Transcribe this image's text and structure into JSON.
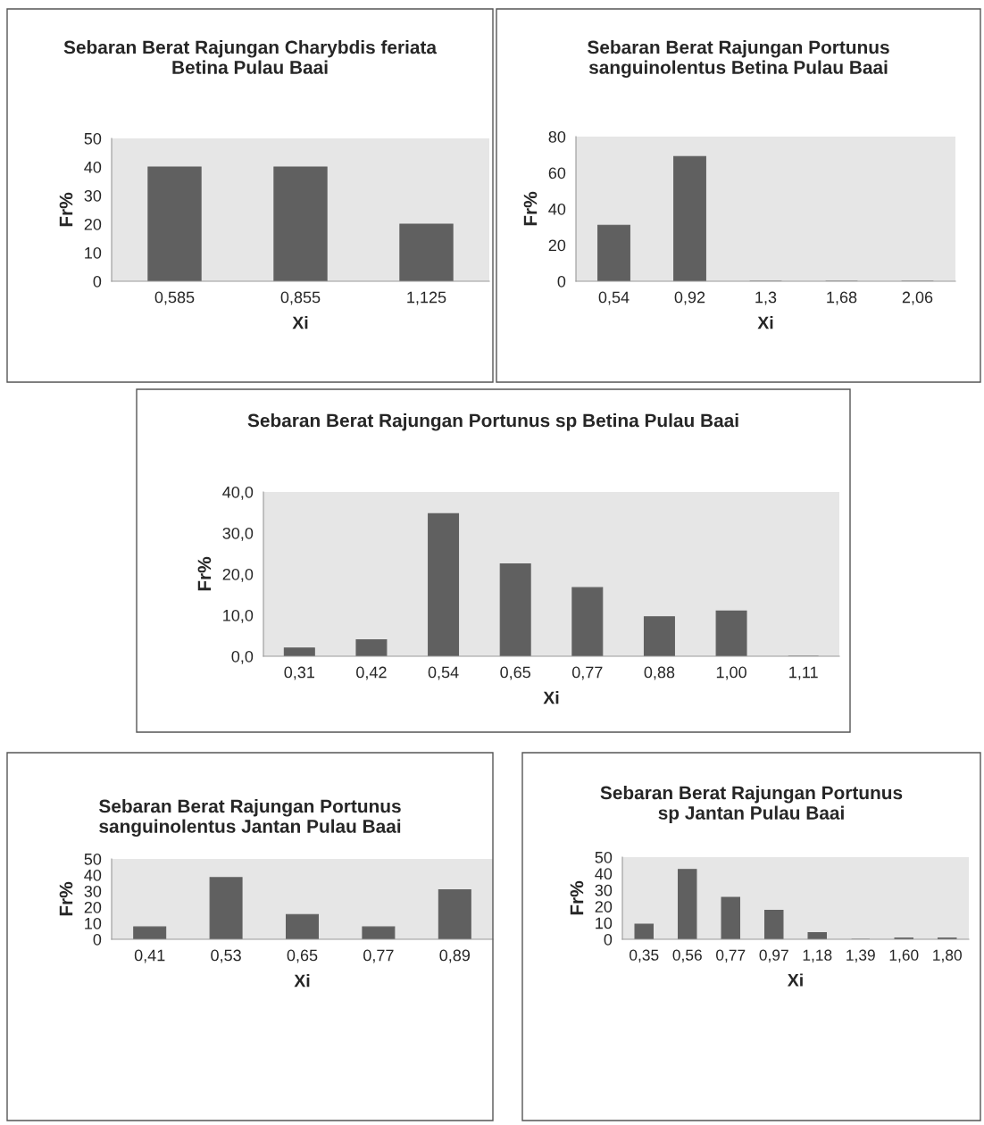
{
  "chart_data": [
    {
      "type": "bar",
      "title": "Sebaran Berat Rajungan Charybdis feriata Betina Pulau Baai",
      "xlabel": "Xi",
      "ylabel": "Fr%",
      "categories": [
        "0,585",
        "0,855",
        "1,125"
      ],
      "values": [
        40,
        40,
        20
      ],
      "color": "#606060",
      "ylim": [
        0,
        50
      ],
      "yticks": [
        0,
        10,
        20,
        30,
        40,
        50
      ]
    },
    {
      "type": "bar",
      "title": "Sebaran Berat Rajungan Portunus sanguinolentus Betina Pulau Baai",
      "xlabel": "Xi",
      "ylabel": "Fr%",
      "categories": [
        "0,54",
        "0,92",
        "1,3",
        "1,68",
        "2,06"
      ],
      "values": [
        31,
        69,
        0,
        0,
        0
      ],
      "color": "#606060",
      "ylim": [
        0,
        80
      ],
      "yticks": [
        0,
        20,
        40,
        60,
        80
      ]
    },
    {
      "type": "bar",
      "title": "Sebaran Berat Rajungan Portunus sp Betina Pulau Baai",
      "xlabel": "Xi",
      "ylabel": "Fr%",
      "categories": [
        "0,31",
        "0,42",
        "0,54",
        "0,65",
        "0,77",
        "0,88",
        "1,00",
        "1,11"
      ],
      "values": [
        2,
        4,
        34.7,
        22.5,
        16.7,
        9.6,
        11,
        0
      ],
      "color": "#606060",
      "ylim": [
        0,
        40
      ],
      "yticks": [
        {
          "value": 0,
          "label": "0,0"
        },
        {
          "value": 10,
          "label": "10,0"
        },
        {
          "value": 20,
          "label": "20,0"
        },
        {
          "value": 30,
          "label": "30,0"
        },
        {
          "value": 40,
          "label": "40,0"
        }
      ]
    },
    {
      "type": "bar",
      "title": "Sebaran Berat Rajungan Portunus sanguinolentus Jantan Pulau Baai",
      "xlabel": "Xi",
      "ylabel": "Fr%",
      "categories": [
        "0,41",
        "0,53",
        "0,65",
        "0,77",
        "0,89"
      ],
      "values": [
        7.7,
        38.4,
        15.4,
        7.7,
        30.8
      ],
      "color": "#606060",
      "ylim": [
        0,
        50
      ],
      "yticks": [
        0,
        10,
        20,
        30,
        40,
        50
      ]
    },
    {
      "type": "bar",
      "title": "Sebaran Berat Rajungan Portunus sp Jantan Pulau Baai",
      "xlabel": "Xi",
      "ylabel": "Fr%",
      "categories": [
        "0,35",
        "0,56",
        "0,77",
        "0,97",
        "1,18",
        "1,39",
        "1,60",
        "1,80"
      ],
      "values": [
        9.2,
        42.5,
        25.5,
        17.7,
        4,
        0,
        0.8,
        0.8
      ],
      "color": "#606060",
      "ylim": [
        0,
        50
      ],
      "yticks": [
        0,
        10,
        20,
        30,
        40,
        50
      ]
    }
  ]
}
